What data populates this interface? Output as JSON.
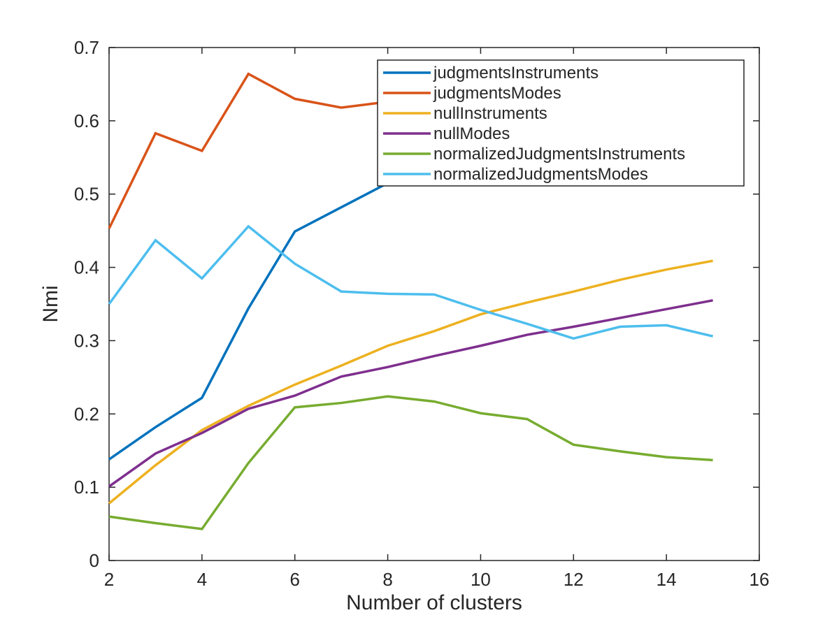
{
  "chart_data": {
    "type": "line",
    "title": "",
    "xlabel": "Number of clusters",
    "ylabel": "Nmi",
    "xlim": [
      2,
      16
    ],
    "ylim": [
      0,
      0.7
    ],
    "xticks": [
      "2",
      "4",
      "6",
      "8",
      "10",
      "12",
      "14",
      "16"
    ],
    "yticks": [
      "0",
      "0.1",
      "0.2",
      "0.3",
      "0.4",
      "0.5",
      "0.6",
      "0.7"
    ],
    "grid": false,
    "legend_position": "top-right",
    "x": [
      2,
      3,
      4,
      5,
      6,
      7,
      8,
      9,
      10,
      11,
      12,
      13,
      14,
      15
    ],
    "series": [
      {
        "name": "judgmentsInstruments",
        "color": "#0072BD",
        "values": [
          0.138,
          0.182,
          0.222,
          0.344,
          0.449,
          0.482,
          0.515,
          0.535,
          0.55,
          0.563,
          0.573,
          0.582,
          0.59,
          0.598
        ]
      },
      {
        "name": "judgmentsModes",
        "color": "#D95319",
        "values": [
          0.453,
          0.583,
          0.559,
          0.664,
          0.63,
          0.618,
          0.626,
          0.63,
          0.632,
          0.634,
          0.636,
          0.637,
          0.638,
          0.64
        ]
      },
      {
        "name": "nullInstruments",
        "color": "#EDB120",
        "values": [
          0.078,
          0.13,
          0.178,
          0.211,
          0.24,
          0.266,
          0.293,
          0.313,
          0.336,
          0.352,
          0.367,
          0.383,
          0.397,
          0.409
        ]
      },
      {
        "name": "nullModes",
        "color": "#7E2F8E",
        "values": [
          0.101,
          0.146,
          0.174,
          0.207,
          0.225,
          0.251,
          0.264,
          0.279,
          0.293,
          0.308,
          0.319,
          0.331,
          0.343,
          0.355
        ]
      },
      {
        "name": "normalizedJudgmentsInstruments",
        "color": "#77AC30",
        "values": [
          0.06,
          0.051,
          0.043,
          0.133,
          0.209,
          0.215,
          0.224,
          0.217,
          0.201,
          0.193,
          0.158,
          0.149,
          0.141,
          0.137
        ]
      },
      {
        "name": "normalizedJudgmentsModes",
        "color": "#4DBEEE",
        "values": [
          0.35,
          0.437,
          0.385,
          0.456,
          0.405,
          0.367,
          0.364,
          0.363,
          0.342,
          0.323,
          0.303,
          0.319,
          0.321,
          0.306
        ]
      }
    ]
  }
}
